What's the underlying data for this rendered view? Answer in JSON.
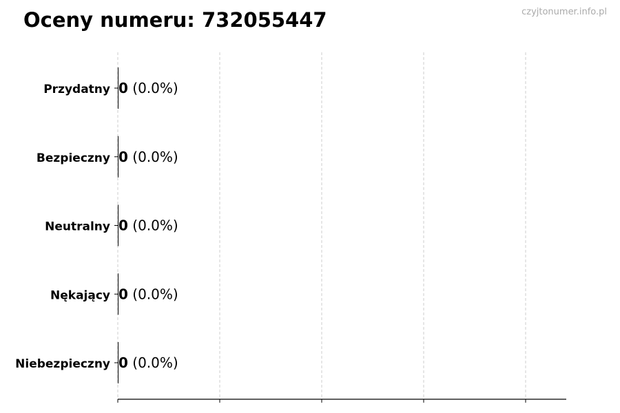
{
  "title": "Oceny numeru: 732055447",
  "watermark": "czyjtonumer.info.pl",
  "chart_data": {
    "type": "bar",
    "orientation": "horizontal",
    "title": "Oceny numeru: 732055447",
    "categories": [
      "Przydatny",
      "Bezpieczny",
      "Neutralny",
      "Nękający",
      "Niebezpieczny"
    ],
    "values": [
      0,
      0,
      0,
      0,
      0
    ],
    "percents": [
      "0.0%",
      "0.0%",
      "0.0%",
      "0.0%",
      "0.0%"
    ],
    "data_labels": [
      "0 (0.0%)",
      "0 (0.0%)",
      "0 (0.0%)",
      "0 (0.0%)",
      "0 (0.0%)"
    ],
    "xlabel": "",
    "ylabel": "",
    "x_tick_labels": [],
    "grid": "vertical dashed",
    "colors": {
      "bar": "#000000",
      "grid": "#cccccc",
      "watermark": "#aaaaaa"
    }
  }
}
